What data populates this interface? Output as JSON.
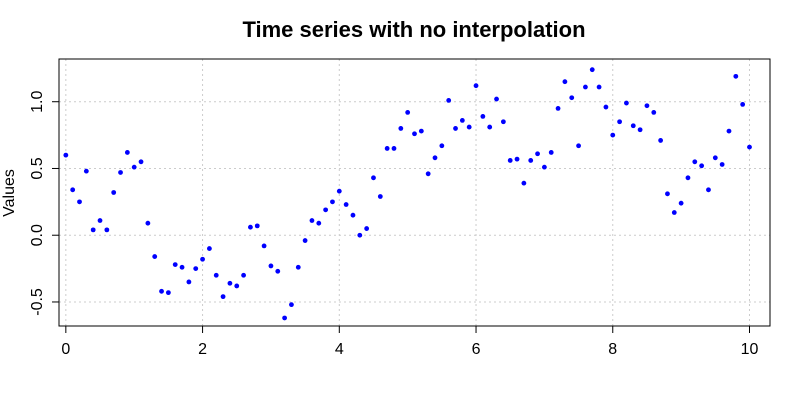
{
  "chart_data": {
    "type": "scatter",
    "title": "Time series with no interpolation",
    "xlabel": "",
    "ylabel": "Values",
    "xlim": [
      -0.1,
      10.3
    ],
    "ylim": [
      -0.68,
      1.32
    ],
    "x_ticks": [
      0,
      2,
      4,
      6,
      8,
      10
    ],
    "y_ticks": [
      -0.5,
      0.0,
      0.5,
      1.0
    ],
    "x_tick_labels": [
      "0",
      "2",
      "4",
      "6",
      "8",
      "10"
    ],
    "y_tick_labels": [
      "-0.5",
      "0.0",
      "0.5",
      "1.0"
    ],
    "grid": true,
    "legend": "none",
    "point_color": "#0000ff",
    "grid_color": "#cccccc",
    "x": [
      0.0,
      0.1,
      0.2,
      0.3,
      0.4,
      0.5,
      0.6,
      0.7,
      0.8,
      0.9,
      1.0,
      1.1,
      1.2,
      1.3,
      1.4,
      1.5,
      1.6,
      1.7,
      1.8,
      1.9,
      2.0,
      2.1,
      2.2,
      2.3,
      2.4,
      2.5,
      2.6,
      2.7,
      2.8,
      2.9,
      3.0,
      3.1,
      3.2,
      3.3,
      3.4,
      3.5,
      3.6,
      3.7,
      3.8,
      3.9,
      4.0,
      4.1,
      4.2,
      4.3,
      4.4,
      4.5,
      4.6,
      4.7,
      4.8,
      4.9,
      5.0,
      5.1,
      5.2,
      5.3,
      5.4,
      5.5,
      5.6,
      5.7,
      5.8,
      5.9,
      6.0,
      6.1,
      6.2,
      6.3,
      6.4,
      6.5,
      6.6,
      6.7,
      6.8,
      6.9,
      7.0,
      7.1,
      7.2,
      7.3,
      7.4,
      7.5,
      7.6,
      7.7,
      7.8,
      7.9,
      8.0,
      8.1,
      8.2,
      8.3,
      8.4,
      8.5,
      8.6,
      8.7,
      8.8,
      8.9,
      9.0,
      9.1,
      9.2,
      9.3,
      9.4,
      9.5,
      9.6,
      9.7,
      9.8,
      9.9,
      10.0
    ],
    "y": [
      0.6,
      0.34,
      0.25,
      0.48,
      0.04,
      0.11,
      0.04,
      0.32,
      0.47,
      0.62,
      0.51,
      0.55,
      0.09,
      -0.16,
      -0.42,
      -0.43,
      -0.22,
      -0.24,
      -0.35,
      -0.25,
      -0.18,
      -0.1,
      -0.3,
      -0.46,
      -0.36,
      -0.38,
      -0.3,
      0.06,
      0.07,
      -0.08,
      -0.23,
      -0.27,
      -0.62,
      -0.52,
      -0.24,
      -0.04,
      0.11,
      0.09,
      0.19,
      0.25,
      0.33,
      0.23,
      0.15,
      0.0,
      0.05,
      0.43,
      0.29,
      0.65,
      0.65,
      0.8,
      0.92,
      0.76,
      0.78,
      0.46,
      0.58,
      0.67,
      1.01,
      0.8,
      0.86,
      0.81,
      1.12,
      0.89,
      0.81,
      1.02,
      0.85,
      0.56,
      0.57,
      0.39,
      0.56,
      0.61,
      0.51,
      0.62,
      0.95,
      1.15,
      1.03,
      0.67,
      1.11,
      1.24,
      1.11,
      0.96,
      0.75,
      0.85,
      0.99,
      0.82,
      0.79,
      0.97,
      0.92,
      0.71,
      0.31,
      0.17,
      0.24,
      0.43,
      0.55,
      0.52,
      0.34,
      0.58,
      0.53,
      0.78,
      1.19,
      0.98,
      0.66
    ]
  }
}
